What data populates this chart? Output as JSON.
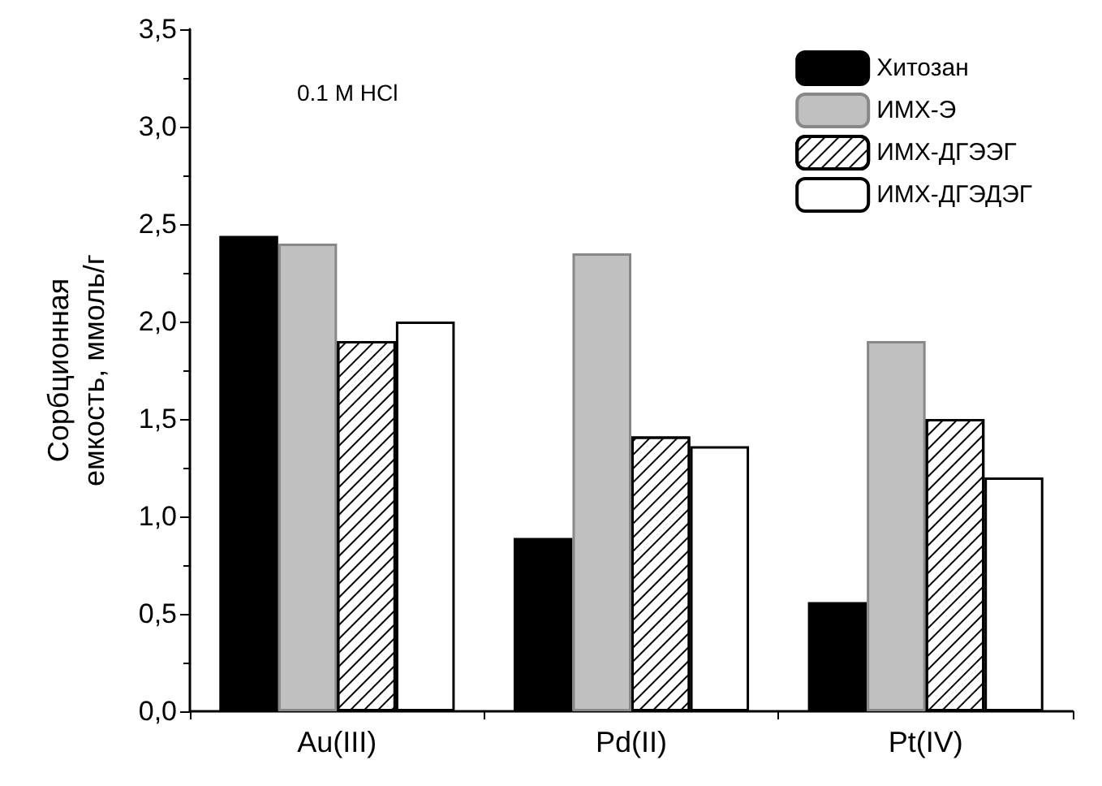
{
  "chart_data": {
    "type": "bar",
    "ylabel": "Сорбционная\nемкость, ммоль/г",
    "categories": [
      "Au(III)",
      "Pd(II)",
      "Pt(IV)"
    ],
    "series": [
      {
        "name": "Хитозан",
        "color": "#000000",
        "values": [
          2.44,
          0.89,
          0.56
        ]
      },
      {
        "name": "ИМХ-Э",
        "color": "#c0c0c0",
        "values": [
          2.4,
          2.35,
          1.9
        ]
      },
      {
        "name": "ИМХ-ДГЭЭГ",
        "color": "#ffffff",
        "values": [
          1.9,
          1.41,
          1.5
        ]
      },
      {
        "name": "ИМХ-ДГЭДЭГ",
        "color": "#ffffff",
        "values": [
          2.0,
          1.36,
          1.2
        ]
      }
    ],
    "ylim": [
      0,
      3.5
    ],
    "yticks": [
      {
        "value": 0,
        "label": "0,0"
      },
      {
        "value": 0.5,
        "label": "0,5"
      },
      {
        "value": 1,
        "label": "1,0"
      },
      {
        "value": 1.5,
        "label": "1,5"
      },
      {
        "value": 2,
        "label": "2,0"
      },
      {
        "value": 2.5,
        "label": "2,5"
      },
      {
        "value": 3,
        "label": "3,0"
      },
      {
        "value": 3.5,
        "label": "3,5"
      }
    ],
    "annotations": [
      "0.1 M HCl"
    ],
    "grid": false,
    "legend": "top right"
  }
}
